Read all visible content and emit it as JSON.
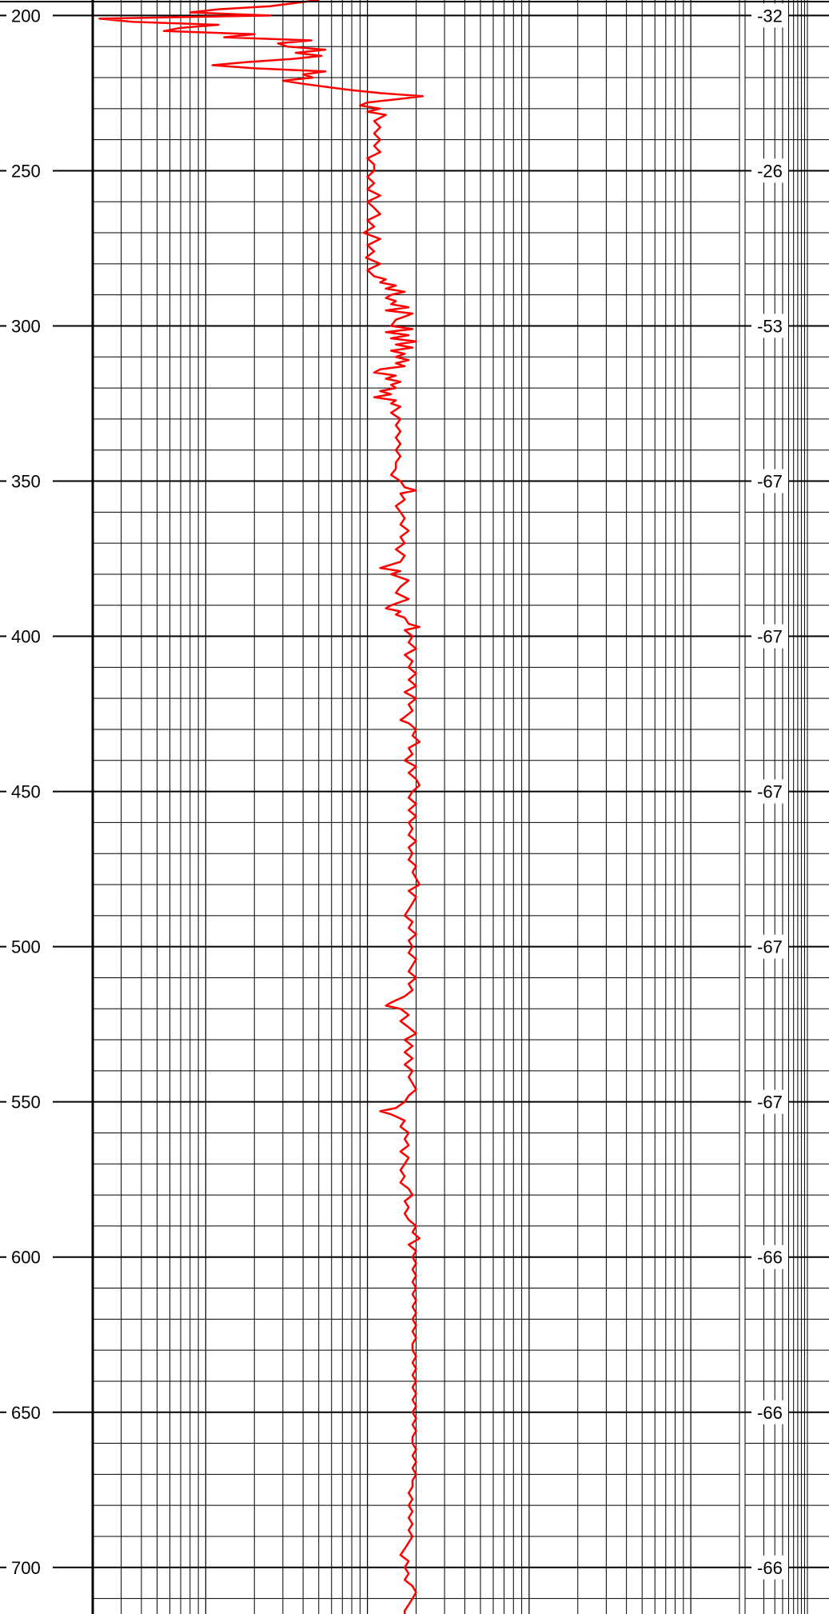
{
  "chart_data": {
    "type": "line",
    "depth_axis": {
      "min": 195,
      "max": 715,
      "major_step": 50,
      "minor_step": 10,
      "tick_labels": [
        "200",
        "250",
        "300",
        "350",
        "400",
        "450",
        "500",
        "550",
        "600",
        "650",
        "700"
      ]
    },
    "x_axis": {
      "scale": "log",
      "min": 0.2,
      "max": 2000,
      "decades": 4
    },
    "right_annotations": [
      {
        "depth": 200,
        "label": "-32"
      },
      {
        "depth": 250,
        "label": "-26"
      },
      {
        "depth": 300,
        "label": "-53"
      },
      {
        "depth": 350,
        "label": "-67"
      },
      {
        "depth": 400,
        "label": "-67"
      },
      {
        "depth": 450,
        "label": "-67"
      },
      {
        "depth": 500,
        "label": "-67"
      },
      {
        "depth": 550,
        "label": "-67"
      },
      {
        "depth": 600,
        "label": "-66"
      },
      {
        "depth": 650,
        "label": "-66"
      },
      {
        "depth": 700,
        "label": "-66"
      }
    ],
    "series": [
      {
        "color": "#ff0000",
        "points": [
          [
            195,
            5.0
          ],
          [
            197,
            2.5
          ],
          [
            198,
            1.2
          ],
          [
            199,
            0.8
          ],
          [
            200,
            2.5
          ],
          [
            201,
            0.22
          ],
          [
            202,
            0.35
          ],
          [
            203,
            1.2
          ],
          [
            204,
            0.7
          ],
          [
            205,
            0.55
          ],
          [
            206,
            2.0
          ],
          [
            207,
            1.3
          ],
          [
            208,
            4.5
          ],
          [
            209,
            2.8
          ],
          [
            210,
            3.2
          ],
          [
            211,
            5.5
          ],
          [
            212,
            3.6
          ],
          [
            213,
            5.2
          ],
          [
            214,
            3.4
          ],
          [
            215,
            1.8
          ],
          [
            216,
            1.1
          ],
          [
            217,
            2.0
          ],
          [
            218,
            5.5
          ],
          [
            219,
            4.0
          ],
          [
            220,
            4.6
          ],
          [
            221,
            3.0
          ],
          [
            222,
            4.0
          ],
          [
            223,
            5.6
          ],
          [
            224,
            7.8
          ],
          [
            225,
            12
          ],
          [
            226,
            22
          ],
          [
            227,
            15
          ],
          [
            228,
            10
          ],
          [
            229,
            9.0
          ],
          [
            230,
            12
          ],
          [
            231,
            10
          ],
          [
            232,
            13
          ],
          [
            234,
            11
          ],
          [
            236,
            12
          ],
          [
            238,
            11
          ],
          [
            240,
            12
          ],
          [
            242,
            11
          ],
          [
            244,
            12
          ],
          [
            246,
            10
          ],
          [
            248,
            11
          ],
          [
            250,
            11
          ],
          [
            252,
            10
          ],
          [
            254,
            11
          ],
          [
            256,
            10
          ],
          [
            258,
            12
          ],
          [
            260,
            10
          ],
          [
            262,
            11
          ],
          [
            264,
            12
          ],
          [
            266,
            10
          ],
          [
            268,
            11
          ],
          [
            270,
            9.5
          ],
          [
            272,
            12
          ],
          [
            274,
            10
          ],
          [
            276,
            11
          ],
          [
            278,
            9.8
          ],
          [
            280,
            12
          ],
          [
            282,
            10
          ],
          [
            284,
            11
          ],
          [
            285,
            13
          ],
          [
            286,
            12
          ],
          [
            287,
            15
          ],
          [
            288,
            13
          ],
          [
            289,
            17
          ],
          [
            290,
            14
          ],
          [
            291,
            13
          ],
          [
            292,
            15
          ],
          [
            293,
            14
          ],
          [
            294,
            18
          ],
          [
            295,
            13
          ],
          [
            296,
            19
          ],
          [
            297,
            17
          ],
          [
            298,
            15
          ],
          [
            300,
            14
          ],
          [
            301,
            19
          ],
          [
            302,
            13
          ],
          [
            303,
            18
          ],
          [
            304,
            14
          ],
          [
            305,
            20
          ],
          [
            306,
            15
          ],
          [
            307,
            19
          ],
          [
            308,
            14
          ],
          [
            309,
            17
          ],
          [
            310,
            15
          ],
          [
            311,
            18
          ],
          [
            312,
            15
          ],
          [
            313,
            17
          ],
          [
            314,
            12
          ],
          [
            315,
            11
          ],
          [
            316,
            15
          ],
          [
            317,
            13
          ],
          [
            318,
            16
          ],
          [
            319,
            14
          ],
          [
            320,
            15
          ],
          [
            321,
            12
          ],
          [
            322,
            14
          ],
          [
            323,
            11
          ],
          [
            324,
            15
          ],
          [
            325,
            14
          ],
          [
            326,
            16
          ],
          [
            327,
            15
          ],
          [
            328,
            14
          ],
          [
            330,
            16
          ],
          [
            332,
            15
          ],
          [
            334,
            16
          ],
          [
            336,
            15
          ],
          [
            338,
            16
          ],
          [
            340,
            15
          ],
          [
            342,
            16
          ],
          [
            344,
            15
          ],
          [
            346,
            15
          ],
          [
            348,
            14
          ],
          [
            350,
            16
          ],
          [
            352,
            17
          ],
          [
            353,
            20
          ],
          [
            354,
            16
          ],
          [
            356,
            17
          ],
          [
            358,
            15
          ],
          [
            360,
            16
          ],
          [
            362,
            17
          ],
          [
            364,
            16
          ],
          [
            366,
            18
          ],
          [
            368,
            16
          ],
          [
            370,
            17
          ],
          [
            372,
            15
          ],
          [
            374,
            17
          ],
          [
            376,
            16
          ],
          [
            378,
            12
          ],
          [
            379,
            16
          ],
          [
            380,
            14
          ],
          [
            382,
            18
          ],
          [
            384,
            16
          ],
          [
            386,
            15
          ],
          [
            388,
            18
          ],
          [
            390,
            14
          ],
          [
            391,
            13
          ],
          [
            392,
            16
          ],
          [
            393,
            15
          ],
          [
            394,
            17
          ],
          [
            396,
            18
          ],
          [
            397,
            21
          ],
          [
            398,
            17
          ],
          [
            400,
            19
          ],
          [
            402,
            18
          ],
          [
            404,
            20
          ],
          [
            406,
            17
          ],
          [
            408,
            19
          ],
          [
            410,
            18
          ],
          [
            412,
            20
          ],
          [
            414,
            18
          ],
          [
            416,
            20
          ],
          [
            418,
            17
          ],
          [
            420,
            20
          ],
          [
            422,
            18
          ],
          [
            424,
            19
          ],
          [
            426,
            17
          ],
          [
            427,
            16
          ],
          [
            428,
            18
          ],
          [
            430,
            20
          ],
          [
            432,
            19
          ],
          [
            434,
            21
          ],
          [
            436,
            18
          ],
          [
            438,
            19
          ],
          [
            440,
            17
          ],
          [
            442,
            20
          ],
          [
            444,
            18
          ],
          [
            446,
            20
          ],
          [
            448,
            21
          ],
          [
            450,
            19
          ],
          [
            452,
            18
          ],
          [
            454,
            20
          ],
          [
            456,
            18
          ],
          [
            458,
            20
          ],
          [
            460,
            18
          ],
          [
            462,
            19
          ],
          [
            464,
            18
          ],
          [
            466,
            20
          ],
          [
            468,
            18
          ],
          [
            470,
            19
          ],
          [
            472,
            18
          ],
          [
            474,
            20
          ],
          [
            476,
            19
          ],
          [
            478,
            20
          ],
          [
            480,
            21
          ],
          [
            482,
            18
          ],
          [
            484,
            20
          ],
          [
            486,
            19
          ],
          [
            488,
            18
          ],
          [
            490,
            17
          ],
          [
            492,
            19
          ],
          [
            494,
            18
          ],
          [
            496,
            20
          ],
          [
            498,
            18
          ],
          [
            500,
            19
          ],
          [
            502,
            18
          ],
          [
            504,
            20
          ],
          [
            506,
            19
          ],
          [
            508,
            18
          ],
          [
            510,
            20
          ],
          [
            512,
            18
          ],
          [
            514,
            19
          ],
          [
            516,
            17
          ],
          [
            518,
            14
          ],
          [
            519,
            13
          ],
          [
            520,
            16
          ],
          [
            522,
            18
          ],
          [
            524,
            16
          ],
          [
            526,
            18
          ],
          [
            528,
            20
          ],
          [
            530,
            17
          ],
          [
            532,
            19
          ],
          [
            534,
            17
          ],
          [
            536,
            19
          ],
          [
            538,
            17
          ],
          [
            540,
            19
          ],
          [
            542,
            18
          ],
          [
            544,
            19
          ],
          [
            546,
            20
          ],
          [
            548,
            18
          ],
          [
            550,
            17
          ],
          [
            552,
            15
          ],
          [
            553,
            12
          ],
          [
            554,
            14
          ],
          [
            556,
            17
          ],
          [
            558,
            16
          ],
          [
            560,
            18
          ],
          [
            562,
            17
          ],
          [
            564,
            18
          ],
          [
            566,
            16
          ],
          [
            568,
            18
          ],
          [
            570,
            17
          ],
          [
            572,
            16
          ],
          [
            574,
            17
          ],
          [
            576,
            16
          ],
          [
            578,
            18
          ],
          [
            580,
            19
          ],
          [
            582,
            17
          ],
          [
            584,
            18
          ],
          [
            586,
            17
          ],
          [
            588,
            18
          ],
          [
            590,
            20
          ],
          [
            592,
            19
          ],
          [
            594,
            21
          ],
          [
            596,
            18
          ],
          [
            598,
            20
          ],
          [
            600,
            19
          ],
          [
            602,
            20
          ],
          [
            604,
            19
          ],
          [
            606,
            20
          ],
          [
            608,
            19
          ],
          [
            610,
            20
          ],
          [
            612,
            19
          ],
          [
            614,
            20
          ],
          [
            616,
            19
          ],
          [
            618,
            20
          ],
          [
            620,
            19
          ],
          [
            622,
            20
          ],
          [
            624,
            19
          ],
          [
            626,
            20
          ],
          [
            628,
            19
          ],
          [
            630,
            19
          ],
          [
            632,
            20
          ],
          [
            634,
            19
          ],
          [
            636,
            20
          ],
          [
            638,
            19
          ],
          [
            640,
            20
          ],
          [
            642,
            19
          ],
          [
            644,
            20
          ],
          [
            646,
            19
          ],
          [
            648,
            20
          ],
          [
            650,
            19
          ],
          [
            652,
            20
          ],
          [
            654,
            19
          ],
          [
            656,
            20
          ],
          [
            658,
            19
          ],
          [
            660,
            19
          ],
          [
            662,
            20
          ],
          [
            664,
            19
          ],
          [
            666,
            20
          ],
          [
            668,
            19
          ],
          [
            670,
            20
          ],
          [
            672,
            19
          ],
          [
            674,
            19
          ],
          [
            676,
            18
          ],
          [
            678,
            19
          ],
          [
            680,
            18
          ],
          [
            682,
            19
          ],
          [
            684,
            18
          ],
          [
            686,
            19
          ],
          [
            688,
            18
          ],
          [
            690,
            19
          ],
          [
            692,
            18
          ],
          [
            694,
            17
          ],
          [
            696,
            16
          ],
          [
            698,
            18
          ],
          [
            700,
            17
          ],
          [
            702,
            18
          ],
          [
            704,
            17
          ],
          [
            706,
            19
          ],
          [
            708,
            20
          ],
          [
            710,
            19
          ],
          [
            712,
            18
          ],
          [
            714,
            17
          ],
          [
            715,
            17
          ]
        ]
      }
    ]
  }
}
